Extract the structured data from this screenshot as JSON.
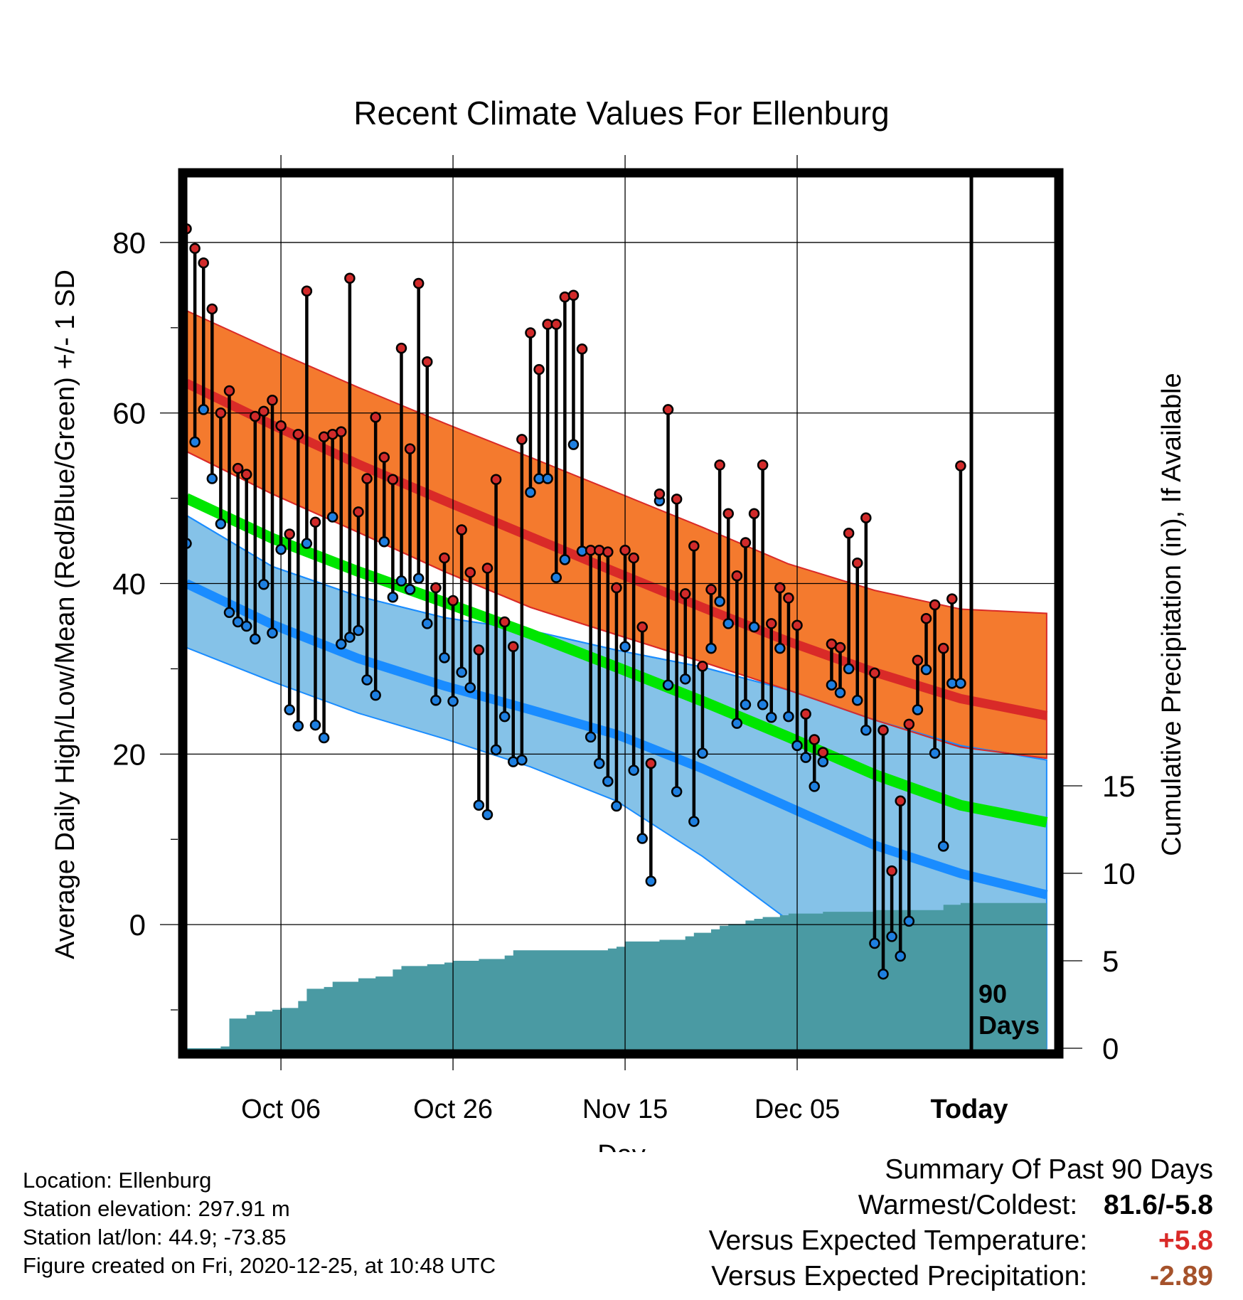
{
  "chart_data": {
    "type": "line",
    "title": "Recent Climate Values For Ellenburg",
    "xlabel": "Day",
    "ylabel": "Average Daily High/Low/Mean (Red/Blue/Green) +/- 1 SD",
    "y2label": "Cumulative Precipitation (in), If Available",
    "x_tick_labels": [
      "Oct 06",
      "Oct 26",
      "Nov 15",
      "Dec 05",
      "Today"
    ],
    "x_tick_days": [
      11,
      31,
      51,
      71,
      91
    ],
    "xlim": [
      0,
      101
    ],
    "ylim": [
      -15,
      88
    ],
    "y_ticks": [
      0,
      20,
      40,
      60,
      80
    ],
    "y2lim": [
      0,
      20
    ],
    "y2_ticks": [
      0,
      5,
      10,
      15
    ],
    "grid": true,
    "annotation": "90\nDays",
    "colors": {
      "high": "#d92a28",
      "high_band": "#f47a2e",
      "low": "#1a8cff",
      "low_band": "#85c2e8",
      "mean": "#00e600",
      "overlap": "#961414",
      "precip": "#4a9aa3",
      "high_dot": "#d12a2a",
      "low_dot": "#1e7fe0",
      "warm_value": "#d92a28",
      "precip_value": "#a5522b"
    },
    "normals": {
      "days": [
        0,
        10,
        20,
        30,
        40,
        50,
        60,
        70,
        80,
        90,
        100
      ],
      "high_mean": [
        63.5,
        58.6,
        54.0,
        49.7,
        45.5,
        41.3,
        37.2,
        33.2,
        29.6,
        26.5,
        24.5
      ],
      "high_upper": [
        72.0,
        67.4,
        63.0,
        58.8,
        54.8,
        50.7,
        46.6,
        42.3,
        39.2,
        37.0,
        36.5
      ],
      "high_lower": [
        55.5,
        50.5,
        46.0,
        41.4,
        37.2,
        34.0,
        30.8,
        27.5,
        24.0,
        20.8,
        19.5
      ],
      "mean_mean": [
        50.0,
        45.3,
        41.4,
        37.8,
        34.1,
        30.2,
        26.2,
        22.0,
        17.6,
        14.0,
        12.0
      ],
      "low_mean": [
        40.0,
        35.2,
        31.2,
        28.0,
        25.2,
        22.3,
        18.3,
        13.8,
        9.3,
        6.0,
        3.5
      ],
      "low_upper": [
        48.0,
        42.0,
        38.5,
        36.0,
        34.5,
        32.2,
        30.2,
        27.5,
        24.0,
        21.0,
        19.3
      ],
      "low_lower": [
        32.5,
        28.5,
        24.8,
        21.8,
        18.5,
        14.5,
        8.0,
        0.5,
        -6.0,
        -11.5,
        -14.5
      ]
    },
    "observations": {
      "days": [
        0,
        1,
        2,
        3,
        4,
        5,
        6,
        7,
        8,
        9,
        10,
        11,
        12,
        13,
        14,
        15,
        16,
        17,
        18,
        19,
        20,
        21,
        22,
        23,
        24,
        25,
        26,
        27,
        28,
        29,
        30,
        31,
        32,
        33,
        34,
        35,
        36,
        37,
        38,
        39,
        40,
        41,
        42,
        43,
        44,
        45,
        46,
        47,
        48,
        49,
        50,
        51,
        52,
        53,
        54,
        55,
        56,
        57,
        58,
        59,
        60,
        61,
        62,
        63,
        64,
        65,
        66,
        67,
        68,
        69,
        70,
        71,
        72,
        73,
        74,
        75,
        76,
        77,
        78,
        79,
        80,
        81,
        82,
        83,
        84,
        85,
        86,
        87,
        88,
        89,
        90
      ],
      "high": [
        81.6,
        79.3,
        77.6,
        72.2,
        60.0,
        62.6,
        53.5,
        52.8,
        59.6,
        60.2,
        61.5,
        58.5,
        45.8,
        57.5,
        74.3,
        47.2,
        57.2,
        57.5,
        57.8,
        75.8,
        48.4,
        52.3,
        59.5,
        54.8,
        52.2,
        67.6,
        55.8,
        75.2,
        66.0,
        39.5,
        43.0,
        38.0,
        46.3,
        41.3,
        32.2,
        41.8,
        52.2,
        35.5,
        32.6,
        56.9,
        69.4,
        65.1,
        70.4,
        70.4,
        73.6,
        73.8,
        67.5,
        43.9,
        43.9,
        43.7,
        39.5,
        43.9,
        43.0,
        34.9,
        18.9,
        50.5,
        60.4,
        49.9,
        38.8,
        44.4,
        30.3,
        39.3,
        53.9,
        48.2,
        40.9,
        44.8,
        48.2,
        53.9,
        35.3,
        39.5,
        38.3,
        35.1,
        24.7,
        21.7,
        20.2,
        32.9,
        32.5,
        45.9,
        42.4,
        47.7,
        29.5,
        22.8,
        6.3,
        14.5,
        23.5,
        31.0,
        35.9,
        37.5,
        32.4,
        38.2,
        53.8
      ],
      "low": [
        44.7,
        56.6,
        60.4,
        52.3,
        47.0,
        36.6,
        35.5,
        35.0,
        33.5,
        39.9,
        34.2,
        44.0,
        25.2,
        23.3,
        44.7,
        23.4,
        21.9,
        47.8,
        32.9,
        33.7,
        34.5,
        28.7,
        26.9,
        44.9,
        38.4,
        40.3,
        39.3,
        40.6,
        35.3,
        26.3,
        31.3,
        26.2,
        29.6,
        27.8,
        14.0,
        12.9,
        20.5,
        24.4,
        19.1,
        19.3,
        50.7,
        52.3,
        52.3,
        40.7,
        42.8,
        56.3,
        43.8,
        22.0,
        18.9,
        16.8,
        13.9,
        32.6,
        18.1,
        10.1,
        5.1,
        49.7,
        28.1,
        15.6,
        28.8,
        12.1,
        20.1,
        32.4,
        37.9,
        35.3,
        23.6,
        25.8,
        34.9,
        25.8,
        24.3,
        32.4,
        24.4,
        21.0,
        19.6,
        16.2,
        19.1,
        28.1,
        27.2,
        30.0,
        26.3,
        22.8,
        -2.2,
        -5.8,
        -1.4,
        -3.7,
        0.4,
        25.2,
        29.9,
        20.1,
        9.2,
        28.3,
        28.3
      ]
    },
    "precipitation": {
      "days": [
        0,
        3,
        4,
        5,
        6,
        7,
        8,
        10,
        11,
        13,
        14,
        16,
        17,
        19,
        20,
        22,
        24,
        25,
        27,
        28,
        30,
        31,
        34,
        37,
        38,
        43,
        49,
        50,
        51,
        55,
        56,
        58,
        59,
        61,
        62,
        63,
        65,
        66,
        67,
        69,
        70,
        71,
        74,
        80,
        84,
        88,
        90,
        100
      ],
      "values": [
        0,
        0,
        0.1,
        1.7,
        1.7,
        1.9,
        2.1,
        2.2,
        2.3,
        2.7,
        3.4,
        3.5,
        3.8,
        3.8,
        4.0,
        4.1,
        4.5,
        4.7,
        4.7,
        4.8,
        4.9,
        5.0,
        5.1,
        5.3,
        5.6,
        5.6,
        5.7,
        5.8,
        6.1,
        6.2,
        6.2,
        6.4,
        6.6,
        6.8,
        7.0,
        7.1,
        7.3,
        7.4,
        7.5,
        7.6,
        7.7,
        7.7,
        7.8,
        7.9,
        7.9,
        8.2,
        8.3,
        8.3
      ]
    }
  },
  "footer": {
    "location": "Location: Ellenburg",
    "elevation": "Station elevation: 297.91 m",
    "latlon": "Station lat/lon: 44.9; -73.85",
    "created": "Figure created on Fri, 2020-12-25, at 10:48 UTC"
  },
  "summary": {
    "title": "Summary Of Past 90 Days",
    "warmest_coldest_label": "Warmest/Coldest:",
    "warmest_coldest_value": "81.6/-5.8",
    "temp_label": "Versus Expected Temperature:",
    "temp_value": "+5.8",
    "precip_label": "Versus Expected Precipitation:",
    "precip_value": "-2.89"
  }
}
